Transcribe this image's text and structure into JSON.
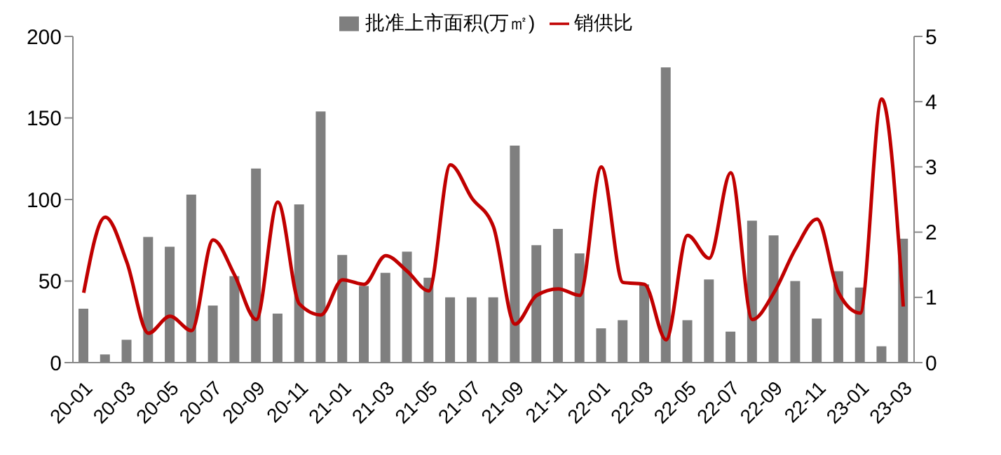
{
  "chart_data": {
    "type": "bar",
    "categories": [
      "20-01",
      null,
      "20-03",
      null,
      "20-05",
      null,
      "20-07",
      null,
      "20-09",
      null,
      "20-11",
      null,
      "21-01",
      null,
      "21-03",
      null,
      "21-05",
      null,
      "21-07",
      null,
      "21-09",
      null,
      "21-11",
      null,
      "22-01",
      null,
      "22-03",
      null,
      "22-05",
      null,
      "22-07",
      null,
      "22-09",
      null,
      "22-11",
      null,
      "23-01",
      null,
      "23-03"
    ],
    "series": [
      {
        "name": "批准上市面积(万㎡)",
        "color": "#7f7f7f",
        "values": [
          33,
          5,
          14,
          77,
          71,
          103,
          35,
          53,
          119,
          30,
          97,
          154,
          66,
          47,
          55,
          68,
          52,
          40,
          40,
          40,
          133,
          72,
          82,
          67,
          21,
          26,
          48,
          181,
          26,
          51,
          19,
          87,
          78,
          50,
          27,
          56,
          46,
          10,
          76
        ]
      },
      {
        "name": "销供比",
        "type": "line",
        "axis": "y2",
        "color": "#c00000",
        "values": [
          1.07,
          2.23,
          1.54,
          0.45,
          0.71,
          0.49,
          1.88,
          1.34,
          0.66,
          2.46,
          0.9,
          0.73,
          1.27,
          1.2,
          1.64,
          1.4,
          1.1,
          3.03,
          2.52,
          2.08,
          0.59,
          1.03,
          1.13,
          1.03,
          3.0,
          1.23,
          1.2,
          0.35,
          1.95,
          1.6,
          2.91,
          0.66,
          1.07,
          1.74,
          2.2,
          1.07,
          0.76,
          4.04,
          0.86
        ]
      }
    ],
    "ylim": [
      0,
      200
    ],
    "yticks": [
      0,
      50,
      100,
      150,
      200
    ],
    "y2lim": [
      0,
      5
    ],
    "y2ticks": [
      0,
      1,
      2,
      3,
      4,
      5
    ],
    "grid": false,
    "legend": "top",
    "marker": "none"
  }
}
